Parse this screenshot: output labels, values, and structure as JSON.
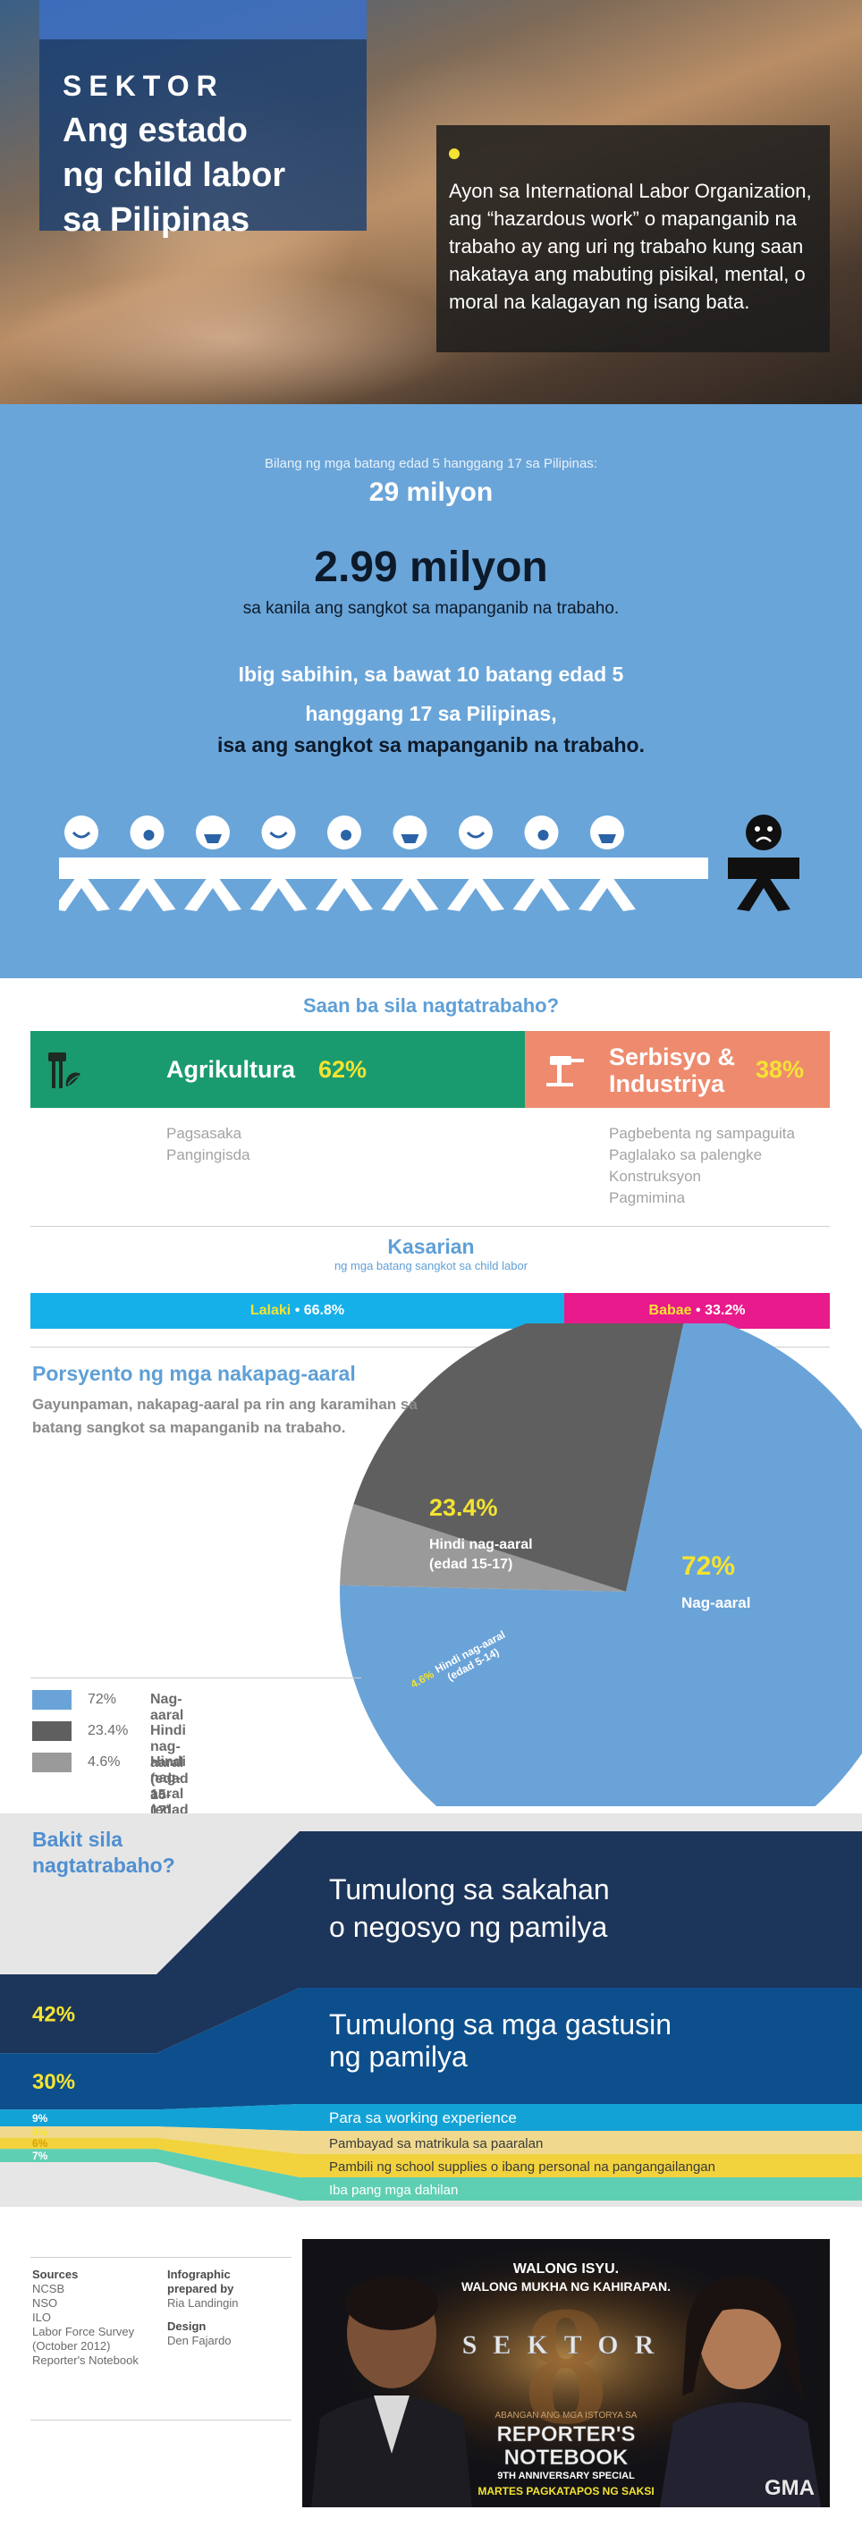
{
  "header": {
    "sektor_label": "SEKTOR",
    "title_line1": "Ang estado",
    "title_line2": "ng child labor",
    "title_line3": "sa Pilipinas",
    "description": "Ayon sa International Labor Organization, ang “hazardous work” o mapanganib na trabaho ay ang uri ng trabaho kung saan nakataya ang mabuting pisikal, mental, o moral na kalagayan ng isang bata."
  },
  "stats": {
    "population_label": "Bilang ng mga batang edad 5 hanggang 17 sa Pilipinas:",
    "population_value": "29 milyon",
    "hazardous_value": "2.99 milyon",
    "hazardous_caption": "sa kanila ang sangkot sa mapanganib na trabaho.",
    "ibig_line1": "Ibig sabihin, sa bawat 10 batang edad 5",
    "ibig_line2": "hanggang 17 sa Pilipinas,",
    "ibig_line3": "isa ang sangkot sa mapanganib na trabaho.",
    "ratio": {
      "total": 10,
      "hazardous": 1
    }
  },
  "work": {
    "title": "Saan ba sila nagtatrabaho?",
    "agriculture": {
      "label": "Agrikultura",
      "pct": "62%",
      "items": [
        "Pagsasaka",
        "Pangingisda"
      ]
    },
    "services": {
      "label_line1": "Serbisyo &",
      "label_line2": "Industriya",
      "pct": "38%",
      "items": [
        "Pagbebenta ng sampaguita",
        "Paglalako sa palengke",
        "Konstruksyon",
        "Pagmimina"
      ]
    }
  },
  "gender": {
    "title": "Kasarian",
    "subtitle": "ng mga batang sangkot sa child labor",
    "male": {
      "label": "Lalaki",
      "value": "66.8%"
    },
    "female": {
      "label": "Babae",
      "value": "33.2%"
    }
  },
  "education": {
    "title": "Porsyento ng mga nakapag-aaral",
    "description": "Gayunpaman, nakapag-aaral pa rin ang karamihan sa batang sangkot sa mapanganib na trabaho.",
    "slice_labels": {
      "big_pct": "72%",
      "big_name": "Nag-aaral",
      "mid_pct": "23.4%",
      "mid_name_line1": "Hindi nag-aaral",
      "mid_name_line2": "(edad 15-17)",
      "small_pct": "4.6%",
      "small_name_line1": "Hindi nag-aaral",
      "small_name_line2": "(edad 5-14)"
    },
    "legend": [
      {
        "pct": "72%",
        "name": "Nag-aaral"
      },
      {
        "pct": "23.4%",
        "name": "Hindi nag-aaral (edad 15-17)"
      },
      {
        "pct": "4.6%",
        "name": "Hindi nag-aaral (edad 5-14)"
      }
    ]
  },
  "reasons": {
    "title_line1": "Bakit sila",
    "title_line2": "nagtatrabaho?",
    "items": [
      {
        "pct": "42%",
        "label_line1": "Tumulong sa sakahan",
        "label_line2": "o negosyo ng pamilya"
      },
      {
        "pct": "30%",
        "label_line1": "Tumulong sa mga gastusin",
        "label_line2": "ng pamilya"
      },
      {
        "pct": "9%",
        "label_line1": "Para sa working experience",
        "label_line2": ""
      },
      {
        "pct": "6%",
        "label_line1": "Pambayad sa matrikula sa paaralan",
        "label_line2": ""
      },
      {
        "pct": "6%",
        "label_line1": "Pambili ng school supplies o ibang personal na pangangailangan",
        "label_line2": ""
      },
      {
        "pct": "7%",
        "label_line1": "Iba pang mga dahilan",
        "label_line2": ""
      }
    ]
  },
  "credits": {
    "sources_title": "Sources",
    "sources": [
      "NCSB",
      "NSO",
      "ILO",
      "Labor Force Survey",
      "(October 2012)",
      "Reporter's Notebook"
    ],
    "prepared_title_line1": "Infographic",
    "prepared_title_line2": "prepared by",
    "prepared_by": "Ria Landingin",
    "design_title": "Design",
    "design_by": "Den Fajardo"
  },
  "poster": {
    "line1": "WALONG ISYU.",
    "line2": "WALONG MUKHA NG KAHIRAPAN.",
    "number": "8",
    "title": "SEKTOR",
    "tagline": "ABANGAN ANG MGA ISTORYA SA",
    "show_line1": "REPORTER'S",
    "show_line2": "NOTEBOOK",
    "special": "9TH ANNIVERSARY SPECIAL",
    "airing": "MARTES PAGKATAPOS NG SAKSI",
    "network": "GMA"
  },
  "chart_data": [
    {
      "type": "pie",
      "title": "Porsyento ng mga nakapag-aaral",
      "slices": [
        {
          "label": "Nag-aaral",
          "value": 72,
          "color": "#6aa3d8"
        },
        {
          "label": "Hindi nag-aaral (edad 15-17)",
          "value": 23.4,
          "color": "#5f5f5f"
        },
        {
          "label": "Hindi nag-aaral (edad 5-14)",
          "value": 4.6,
          "color": "#9a9a9a"
        }
      ]
    },
    {
      "type": "bar",
      "title": "Saan ba sila nagtatrabaho?",
      "categories": [
        "Agrikultura",
        "Serbisyo & Industriya"
      ],
      "values": [
        62,
        38
      ],
      "colors": [
        "#1a9b6f",
        "#ee8b6f"
      ]
    },
    {
      "type": "bar",
      "title": "Kasarian",
      "categories": [
        "Lalaki",
        "Babae"
      ],
      "values": [
        66.8,
        33.2
      ],
      "colors": [
        "#15b0ea",
        "#e91a8b"
      ]
    },
    {
      "type": "bar",
      "title": "Bakit sila nagtatrabaho?",
      "categories": [
        "Tumulong sa sakahan o negosyo ng pamilya",
        "Tumulong sa mga gastusin ng pamilya",
        "Para sa working experience",
        "Pambayad sa matrikula sa paaralan",
        "Pambili ng school supplies o ibang personal na pangangailangan",
        "Iba pang mga dahilan"
      ],
      "values": [
        42,
        30,
        9,
        6,
        6,
        7
      ],
      "colors": [
        "#1c355a",
        "#0d4f8c",
        "#13a2d6",
        "#f0d98e",
        "#f2d33e",
        "#5fcfb3"
      ]
    }
  ]
}
